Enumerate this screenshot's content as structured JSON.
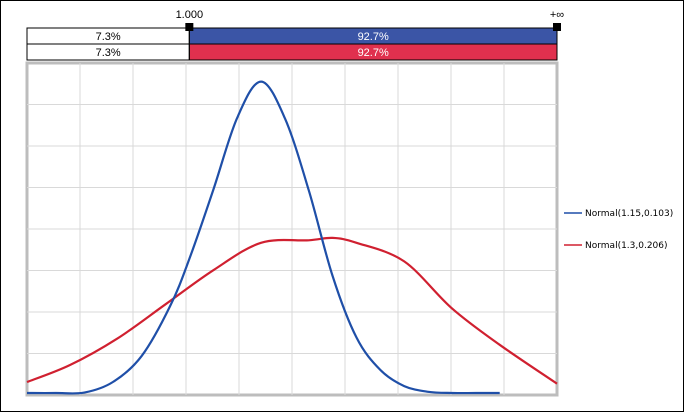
{
  "chart_data": {
    "type": "line",
    "x_range": [
      0.66,
      1.77
    ],
    "y_range": [
      0,
      4.1
    ],
    "grid": true,
    "legend_placement": "right",
    "marker_left_label": "1.000",
    "marker_right_label": "+∞",
    "probability_bars": [
      {
        "series": "Normal(1.15,0.103)",
        "left_label": "7.3%",
        "right_label": "92.7%",
        "color": "#3b55a6"
      },
      {
        "series": "Normal(1.3,0.206)",
        "left_label": "7.3%",
        "right_label": "92.7%",
        "color": "#e0304e"
      }
    ],
    "series": [
      {
        "name": "Normal(1.15,0.103)",
        "color": "#1f4fa8",
        "x": [
          0.66,
          0.72,
          0.78,
          0.84,
          0.9,
          0.96,
          1.0,
          1.05,
          1.1,
          1.15,
          1.2,
          1.25,
          1.3,
          1.35,
          1.4,
          1.45,
          1.5,
          1.55,
          1.6,
          1.65
        ],
        "y": [
          0.0,
          0.01,
          0.03,
          0.16,
          0.48,
          1.1,
          1.68,
          2.53,
          3.42,
          3.87,
          3.42,
          2.53,
          1.47,
          0.71,
          0.31,
          0.11,
          0.04,
          0.01,
          0.0,
          0.0
        ]
      },
      {
        "name": "Normal(1.3,0.206)",
        "color": "#d02030",
        "x": [
          0.66,
          0.75,
          0.85,
          0.95,
          1.05,
          1.15,
          1.25,
          1.3,
          1.35,
          1.45,
          1.55,
          1.65,
          1.77
        ],
        "y": [
          0.16,
          0.37,
          0.7,
          1.12,
          1.54,
          1.88,
          1.91,
          1.94,
          1.88,
          1.65,
          1.07,
          0.62,
          0.14
        ]
      }
    ]
  }
}
